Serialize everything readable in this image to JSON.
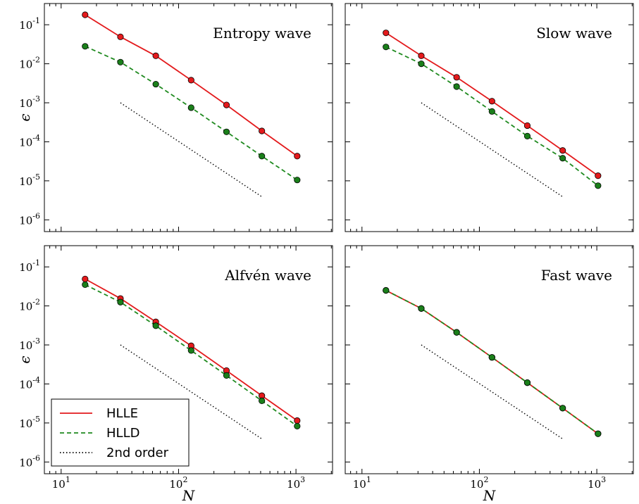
{
  "legend": {
    "hlle": "HLLE",
    "hlld": "HLLD",
    "order2": "2nd order"
  },
  "colors": {
    "hlle": "#e31a1c",
    "hlle_marker": "#e41a1c",
    "hlld": "#1f8a1f",
    "hlld_marker": "#1a7f1a",
    "reference": "#000000",
    "frame": "#000000"
  },
  "axis_text": {
    "xlabel": "N",
    "ylabel": "ϵ",
    "x_ticks": [
      {
        "base": "10",
        "exp": "1"
      },
      {
        "base": "10",
        "exp": "2"
      },
      {
        "base": "10",
        "exp": "3"
      }
    ],
    "y_ticks": [
      {
        "base": "10",
        "exp": "-1"
      },
      {
        "base": "10",
        "exp": "-2"
      },
      {
        "base": "10",
        "exp": "-3"
      },
      {
        "base": "10",
        "exp": "-4"
      },
      {
        "base": "10",
        "exp": "-5"
      },
      {
        "base": "10",
        "exp": "-6"
      }
    ]
  },
  "chart_data": [
    {
      "type": "line",
      "title": "Entropy wave",
      "xscale": "log",
      "yscale": "log",
      "xlim": [
        7.2,
        2048
      ],
      "ylim": [
        5e-07,
        0.35
      ],
      "x": [
        16,
        32,
        64,
        128,
        256,
        512,
        1024
      ],
      "series": [
        {
          "name": "HLLE",
          "style": "solid",
          "values": [
            0.18,
            0.049,
            0.016,
            0.0038,
            0.00088,
            0.00019,
            4.3e-05
          ]
        },
        {
          "name": "HLLD",
          "style": "dashed",
          "values": [
            0.028,
            0.011,
            0.003,
            0.00075,
            0.00018,
            4.3e-05,
            1.05e-05
          ]
        },
        {
          "name": "2nd order",
          "style": "dotted",
          "x": [
            32,
            512
          ],
          "values": [
            0.001,
            3.9e-06
          ]
        }
      ]
    },
    {
      "type": "line",
      "title": "Slow wave",
      "xscale": "log",
      "yscale": "log",
      "xlim": [
        7.2,
        2048
      ],
      "ylim": [
        5e-07,
        0.35
      ],
      "x": [
        16,
        32,
        64,
        128,
        256,
        512,
        1024
      ],
      "series": [
        {
          "name": "HLLE",
          "style": "solid",
          "values": [
            0.062,
            0.016,
            0.0045,
            0.0011,
            0.00026,
            6e-05,
            1.35e-05
          ]
        },
        {
          "name": "HLLD",
          "style": "dashed",
          "values": [
            0.027,
            0.01,
            0.0026,
            0.0006,
            0.00014,
            3.8e-05,
            7.5e-06
          ]
        },
        {
          "name": "2nd order",
          "style": "dotted",
          "x": [
            32,
            512
          ],
          "values": [
            0.001,
            3.9e-06
          ]
        }
      ]
    },
    {
      "type": "line",
      "title": "Alfvén wave",
      "xscale": "log",
      "yscale": "log",
      "xlim": [
        7.2,
        2048
      ],
      "ylim": [
        5e-07,
        0.35
      ],
      "x": [
        16,
        32,
        64,
        128,
        256,
        512,
        1024
      ],
      "series": [
        {
          "name": "HLLE",
          "style": "solid",
          "values": [
            0.049,
            0.0155,
            0.0039,
            0.00095,
            0.00022,
            5e-05,
            1.15e-05
          ]
        },
        {
          "name": "HLLD",
          "style": "dashed",
          "values": [
            0.035,
            0.0125,
            0.0031,
            0.00072,
            0.000165,
            3.7e-05,
            8.3e-06
          ]
        },
        {
          "name": "2nd order",
          "style": "dotted",
          "x": [
            32,
            512
          ],
          "values": [
            0.001,
            3.9e-06
          ]
        }
      ],
      "legend_position": "lower-left"
    },
    {
      "type": "line",
      "title": "Fast wave",
      "xscale": "log",
      "yscale": "log",
      "xlim": [
        7.2,
        2048
      ],
      "ylim": [
        5e-07,
        0.35
      ],
      "x": [
        16,
        32,
        64,
        128,
        256,
        512,
        1024
      ],
      "series": [
        {
          "name": "HLLE",
          "style": "solid",
          "values": [
            0.025,
            0.0086,
            0.0021,
            0.00048,
            0.000108,
            2.4e-05,
            5.3e-06
          ]
        },
        {
          "name": "HLLD",
          "style": "dashed",
          "values": [
            0.025,
            0.0086,
            0.0021,
            0.00048,
            0.000108,
            2.4e-05,
            5.3e-06
          ]
        },
        {
          "name": "2nd order",
          "style": "dotted",
          "x": [
            32,
            512
          ],
          "values": [
            0.001,
            3.9e-06
          ]
        }
      ]
    }
  ]
}
